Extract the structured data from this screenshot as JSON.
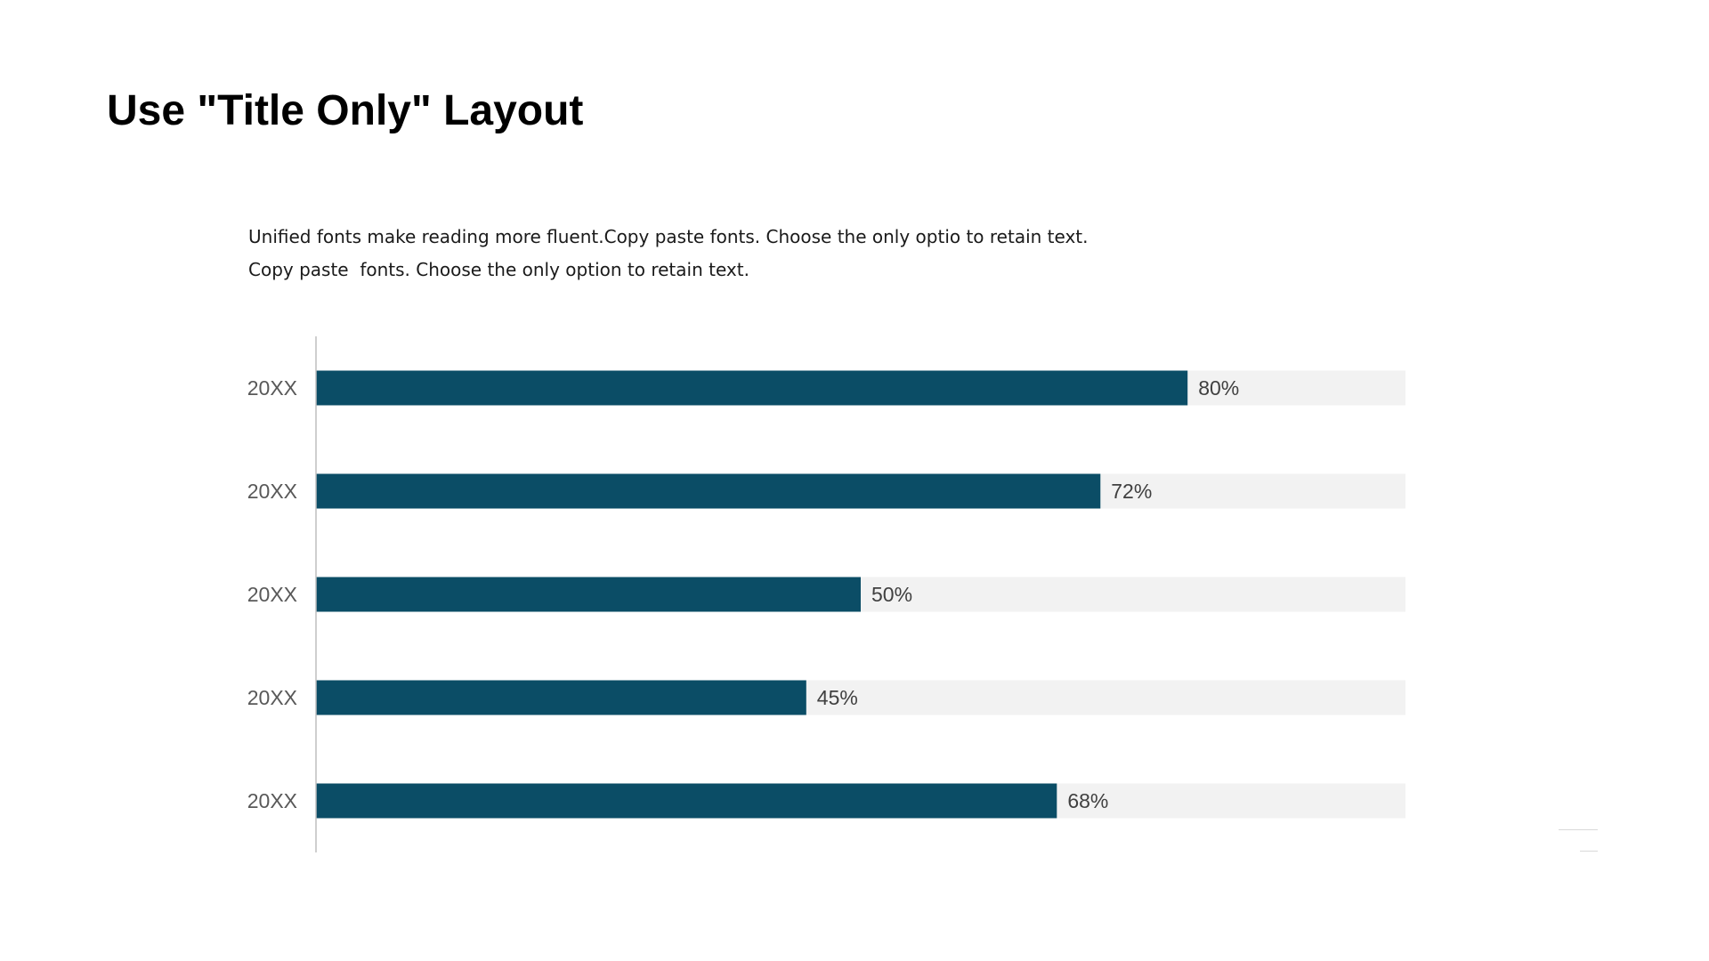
{
  "slide": {
    "title": "Use \"Title Only\" Layout",
    "subtitle_lines": [
      "Unified fonts make reading more fluent.Copy paste fonts. Choose the only optio to retain text.",
      "Copy paste  fonts. Choose the only option to retain text."
    ]
  },
  "colors": {
    "bar": "#0b4d66",
    "track": "#f2f2f2",
    "axis": "#bfbfbf"
  },
  "chart_data": {
    "type": "bar",
    "orientation": "horizontal",
    "categories": [
      "20XX",
      "20XX",
      "20XX",
      "20XX",
      "20XX"
    ],
    "values": [
      80,
      72,
      50,
      45,
      68
    ],
    "value_labels": [
      "80%",
      "72%",
      "50%",
      "45%",
      "68%"
    ],
    "xlim": [
      0,
      100
    ],
    "grid": false,
    "legend": "none"
  }
}
